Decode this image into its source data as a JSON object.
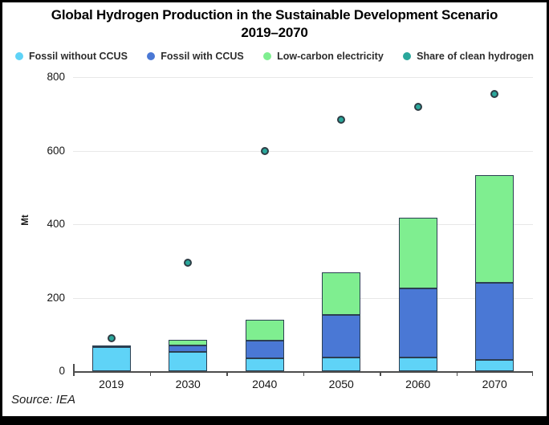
{
  "title": {
    "line1": "Global Hydrogen Production in the Sustainable Development Scenario",
    "line2": "2019–2070"
  },
  "source": "Source: IEA",
  "chart_data": {
    "type": "bar",
    "subtype": "stacked-bars-with-scatter-overlay",
    "title": "Global Hydrogen Production in the Sustainable Development Scenario 2019–2070",
    "xlabel": "",
    "ylabel": "Mt",
    "ylim": [
      0,
      800
    ],
    "yticks": [
      0,
      200,
      400,
      600,
      800
    ],
    "grid": "horizontal",
    "legend_position": "top",
    "categories": [
      "2019",
      "2030",
      "2040",
      "2050",
      "2060",
      "2070"
    ],
    "series": [
      {
        "name": "Fossil without CCUS",
        "render": "bar",
        "color": "#5fd3f7",
        "values": [
          65,
          52,
          35,
          37,
          38,
          30
        ]
      },
      {
        "name": "Fossil with CCUS",
        "render": "bar",
        "color": "#4a78d5",
        "values": [
          6,
          17,
          48,
          117,
          187,
          211
        ]
      },
      {
        "name": "Low-carbon electricity",
        "render": "bar",
        "color": "#7fee90",
        "values": [
          0,
          17,
          57,
          114,
          193,
          293
        ]
      },
      {
        "name": "Share of clean hydrogen",
        "render": "scatter",
        "color": "#2aa79b",
        "values": [
          90,
          295,
          600,
          685,
          720,
          755
        ],
        "note": "plotted against the left Mt axis"
      }
    ],
    "stacked_totals": [
      71,
      86,
      140,
      268,
      418,
      534
    ],
    "styles": {
      "bar_border": "#2b3f52",
      "dot_border": "#2e3d45",
      "gridline": "#e8e8e8",
      "axis": "#4d4d4d"
    }
  }
}
